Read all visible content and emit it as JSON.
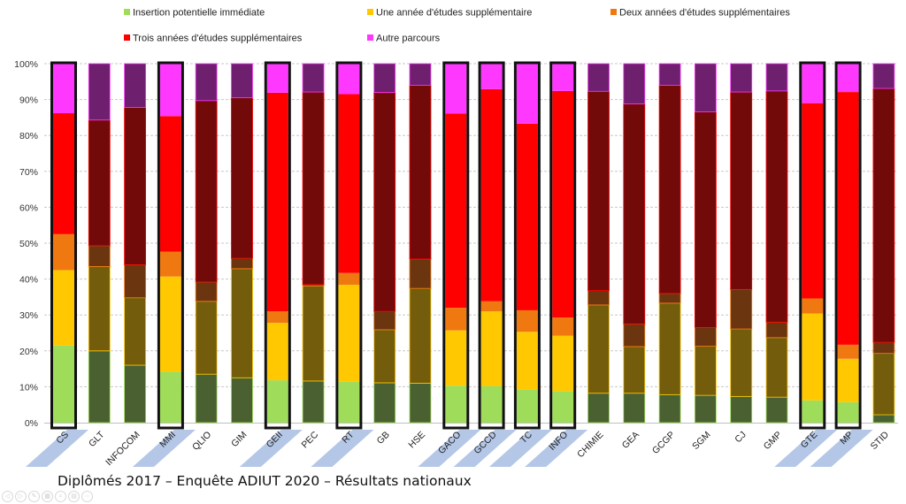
{
  "chart_data": {
    "type": "bar",
    "stacked": true,
    "normalized": true,
    "title": "Diplômés 2017 – Enquête ADIUT 2020 – Résultats nationaux",
    "xlabel": "",
    "ylabel": "",
    "ylim": [
      0,
      100
    ],
    "yticks": [
      "0%",
      "10%",
      "20%",
      "30%",
      "40%",
      "50%",
      "60%",
      "70%",
      "80%",
      "90%",
      "100%"
    ],
    "grid": true,
    "legend_position": "top",
    "categories": [
      "CS",
      "GLT",
      "INFOCOM",
      "MMI",
      "QLIO",
      "GIM",
      "GEII",
      "PEC",
      "RT",
      "GB",
      "HSE",
      "GACO",
      "GCCD",
      "TC",
      "INFO",
      "CHIMIE",
      "GEA",
      "GCGP",
      "SGM",
      "CJ",
      "GMP",
      "GTE",
      "MP",
      "STID"
    ],
    "highlighted": [
      "CS",
      "MMI",
      "GEII",
      "RT",
      "GACO",
      "GCCD",
      "TC",
      "INFO",
      "GTE",
      "MP"
    ],
    "series": [
      {
        "name": "Insertion potentielle immédiate",
        "color": "#9fdc5a",
        "dim_color": "#4a6030",
        "values": [
          21.5,
          20.0,
          16.0,
          14.2,
          13.5,
          12.5,
          11.8,
          11.6,
          11.4,
          11.1,
          11.0,
          10.3,
          10.2,
          9.3,
          8.8,
          8.2,
          8.2,
          7.8,
          7.6,
          7.3,
          7.1,
          6.2,
          5.7,
          2.2
        ]
      },
      {
        "name": "Une année d'études supplémentaire",
        "color": "#ffc800",
        "dim_color": "#735c0c",
        "values": [
          21.0,
          23.5,
          18.8,
          26.5,
          20.3,
          30.4,
          16.0,
          26.5,
          27.0,
          14.8,
          26.4,
          15.4,
          20.8,
          16.0,
          15.4,
          24.6,
          13.0,
          25.5,
          13.7,
          18.8,
          16.6,
          24.2,
          12.1,
          17.1
        ]
      },
      {
        "name": "Deux années d'études supplémentaires",
        "color": "#f07810",
        "dim_color": "#6b3510",
        "values": [
          10.0,
          5.8,
          9.2,
          6.9,
          5.4,
          2.9,
          3.2,
          0.4,
          3.3,
          5.1,
          8.2,
          6.3,
          2.8,
          6.0,
          5.1,
          4.0,
          6.3,
          2.7,
          5.2,
          11.0,
          4.3,
          4.2,
          3.9,
          3.1
        ]
      },
      {
        "name": "Trois années d'études supplémentaires",
        "color": "#ff0000",
        "dim_color": "#730a0a",
        "values": [
          33.7,
          35.0,
          43.8,
          37.8,
          50.5,
          44.7,
          60.9,
          53.6,
          49.8,
          61.0,
          48.4,
          54.1,
          59.1,
          52.0,
          63.1,
          55.5,
          61.3,
          58.0,
          60.1,
          55.0,
          64.4,
          54.4,
          70.4,
          70.7
        ]
      },
      {
        "name": "Autre parcours",
        "color": "#ff38ff",
        "dim_color": "#6e1f6e",
        "values": [
          13.8,
          15.7,
          12.2,
          14.6,
          10.3,
          9.5,
          8.1,
          7.9,
          8.5,
          8.0,
          6.0,
          13.9,
          7.1,
          16.7,
          7.6,
          7.7,
          11.2,
          6.0,
          13.4,
          7.9,
          7.6,
          11.0,
          7.9,
          6.9
        ]
      }
    ]
  },
  "footer": {
    "title": "Diplômés 2017 – Enquête ADIUT 2020 – Résultats nationaux",
    "controls": [
      {
        "name": "previous-slide",
        "glyph": "◁"
      },
      {
        "name": "next-slide",
        "glyph": "▷"
      },
      {
        "name": "pen",
        "glyph": "✎"
      },
      {
        "name": "slides-grid",
        "glyph": "▦"
      },
      {
        "name": "zoom",
        "glyph": "⌕"
      },
      {
        "name": "subtitles",
        "glyph": "▤"
      },
      {
        "name": "more",
        "glyph": "⋯"
      }
    ]
  }
}
